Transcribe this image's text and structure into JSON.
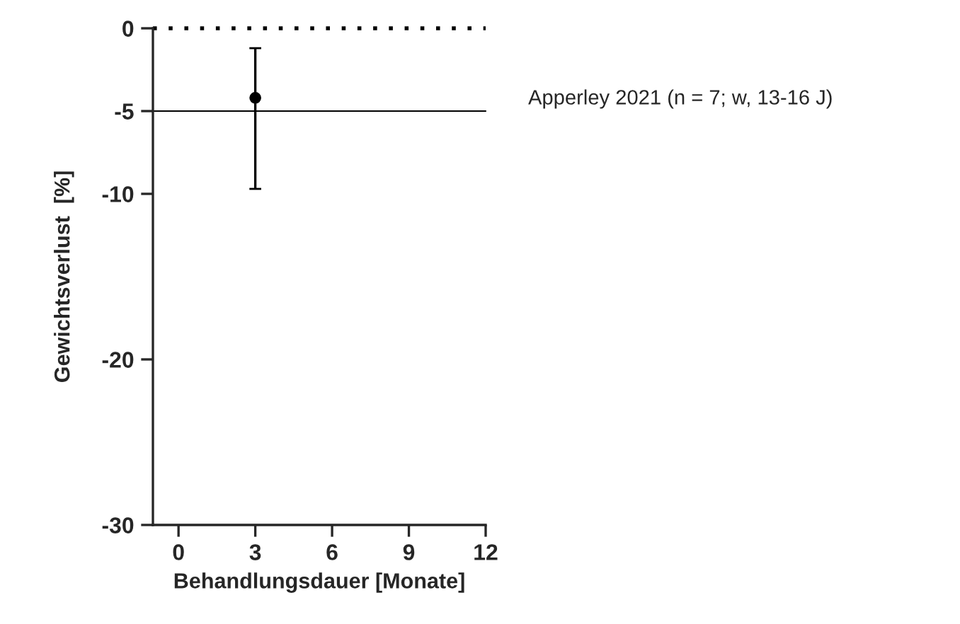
{
  "chart_data": {
    "type": "scatter",
    "xlabel": "Behandlungsdauer [Monate]",
    "ylabel": "Gewichtsverlust  [%]",
    "x": [
      3
    ],
    "values": [
      -4.2
    ],
    "errors": [
      [
        -9.7,
        -1.2
      ]
    ],
    "color": "#000000",
    "marker": "circle",
    "xlim": [
      -1,
      12
    ],
    "xticks": [
      0,
      3,
      6,
      9,
      12
    ],
    "ylim": [
      -30,
      0
    ],
    "yticks": [
      0,
      -5,
      -10,
      -20,
      -30
    ],
    "grid": false,
    "legend": false,
    "ref_lines": [
      {
        "axis": "y",
        "value": 0,
        "line_style": "dotted",
        "color": "#000000"
      },
      {
        "axis": "y",
        "value": -5,
        "line_style": "solid",
        "color": "#000000"
      }
    ],
    "annotations": [
      "Apperley 2021 (n = 7; w, 13-16 J)"
    ]
  }
}
